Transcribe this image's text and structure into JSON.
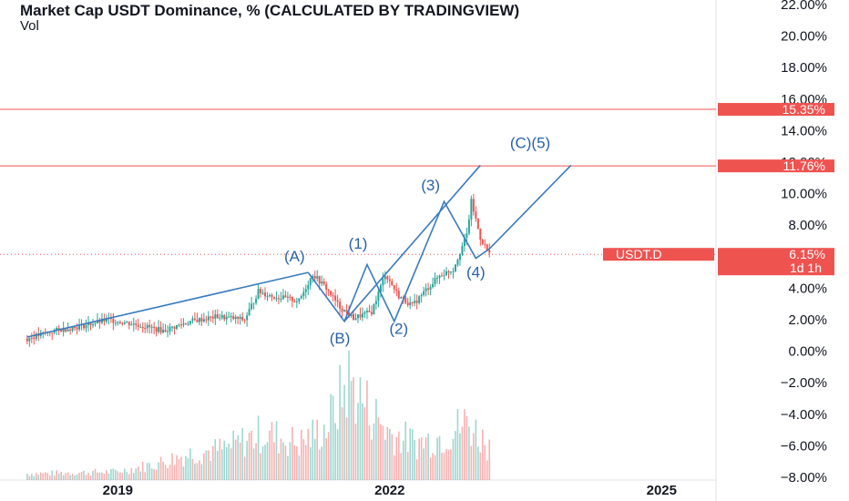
{
  "header": {
    "title": "Market Cap USDT Dominance, % (CALCULATED BY TRADINGVIEW)",
    "vol_label": "Vol"
  },
  "colors": {
    "up": "#26a69a",
    "down": "#ef5350",
    "wave": "#3a7bbf",
    "hline": "#ef5350",
    "axis_text": "#131722"
  },
  "chart_data": {
    "type": "candlestick",
    "symbol": "USDT.D",
    "x_ticks": [
      "2019",
      "2022",
      "2025"
    ],
    "y_ticks": [
      "22.00%",
      "20.00%",
      "18.00%",
      "16.00%",
      "14.00%",
      "12.00%",
      "10.00%",
      "8.00%",
      "6.00%",
      "4.00%",
      "2.00%",
      "0.00%",
      "−2.00%",
      "−4.00%",
      "−6.00%",
      "−8.00%"
    ],
    "y_tick_values": [
      22,
      20,
      18,
      16,
      14,
      12,
      10,
      8,
      6,
      4,
      2,
      0,
      -2,
      -4,
      -6,
      -8
    ],
    "ylim": [
      -8,
      22
    ],
    "x_range": [
      2017.7,
      2025.6
    ],
    "price_series": [
      [
        2018.0,
        0.8
      ],
      [
        2018.3,
        1.3
      ],
      [
        2018.6,
        1.6
      ],
      [
        2018.9,
        2.0
      ],
      [
        2019.2,
        1.7
      ],
      [
        2019.5,
        1.3
      ],
      [
        2019.8,
        1.9
      ],
      [
        2020.1,
        2.2
      ],
      [
        2020.4,
        2.0
      ],
      [
        2020.55,
        3.8
      ],
      [
        2020.7,
        3.5
      ],
      [
        2021.0,
        3.2
      ],
      [
        2021.15,
        4.9
      ],
      [
        2021.3,
        4.0
      ],
      [
        2021.45,
        2.8
      ],
      [
        2021.6,
        2.1
      ],
      [
        2021.8,
        2.5
      ],
      [
        2021.95,
        4.9
      ],
      [
        2022.1,
        3.5
      ],
      [
        2022.25,
        2.9
      ],
      [
        2022.4,
        3.9
      ],
      [
        2022.55,
        4.8
      ],
      [
        2022.7,
        5.2
      ],
      [
        2022.85,
        7.4
      ],
      [
        2022.9,
        9.5
      ],
      [
        2023.0,
        7.2
      ],
      [
        2023.1,
        6.15
      ]
    ],
    "volume_series": [
      [
        2018.0,
        0.06
      ],
      [
        2018.5,
        0.07
      ],
      [
        2019.0,
        0.08
      ],
      [
        2019.4,
        0.15
      ],
      [
        2019.8,
        0.25
      ],
      [
        2020.2,
        0.3
      ],
      [
        2020.6,
        0.45
      ],
      [
        2021.0,
        0.35
      ],
      [
        2021.3,
        0.5
      ],
      [
        2021.55,
        0.95
      ],
      [
        2021.75,
        0.7
      ],
      [
        2022.0,
        0.45
      ],
      [
        2022.3,
        0.35
      ],
      [
        2022.6,
        0.42
      ],
      [
        2022.85,
        0.55
      ],
      [
        2023.1,
        0.32
      ]
    ],
    "wave_lines": [
      [
        [
          2018.0,
          0.9
        ],
        [
          2021.1,
          5.0
        ]
      ],
      [
        [
          2021.1,
          5.0
        ],
        [
          2021.5,
          1.9
        ],
        [
          2021.75,
          5.5
        ],
        [
          2022.05,
          1.9
        ],
        [
          2022.6,
          9.5
        ],
        [
          2022.95,
          5.9
        ],
        [
          2023.1,
          6.5
        ],
        [
          2024.0,
          11.8
        ]
      ],
      [
        [
          2021.5,
          1.9
        ],
        [
          2023.0,
          11.8
        ]
      ]
    ],
    "wave_labels": [
      {
        "text": "(A)",
        "x": 2020.95,
        "y": 5.7
      },
      {
        "text": "(1)",
        "x": 2021.65,
        "y": 6.5
      },
      {
        "text": "(B)",
        "x": 2021.45,
        "y": 0.5
      },
      {
        "text": "(2)",
        "x": 2022.1,
        "y": 1.1
      },
      {
        "text": "(3)",
        "x": 2022.45,
        "y": 10.2
      },
      {
        "text": "(4)",
        "x": 2022.95,
        "y": 4.7
      },
      {
        "text": "(C)(5)",
        "x": 2023.55,
        "y": 12.9
      }
    ],
    "hlines": [
      {
        "value": 15.35,
        "label": "15.35%"
      },
      {
        "value": 11.76,
        "label": "11.76%"
      }
    ],
    "current": {
      "symbol": "USDT.D",
      "value": 6.15,
      "label": "6.15%",
      "countdown": "1d 1h"
    }
  }
}
